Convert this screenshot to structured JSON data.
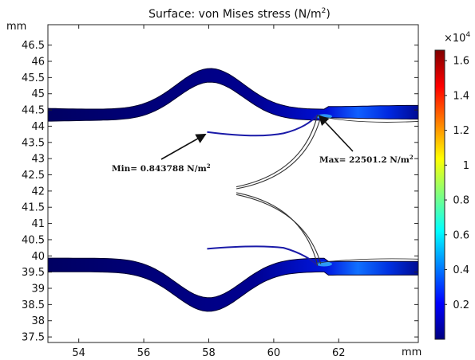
{
  "chart_data": {
    "type": "heatmap",
    "title_main": "Surface: von Mises stress (N/m",
    "title_sup": "2",
    "title_end": ")",
    "x_unit": "mm",
    "y_unit": "mm",
    "xlim": [
      53.05,
      64.45
    ],
    "ylim": [
      37.33,
      47.13
    ],
    "x_ticks": [
      "54",
      "56",
      "58",
      "60",
      "62"
    ],
    "y_ticks": [
      "37.5",
      "38",
      "38.5",
      "39",
      "39.5",
      "40",
      "40.5",
      "41",
      "41.5",
      "42",
      "42.5",
      "43",
      "43.5",
      "44",
      "44.5",
      "45",
      "45.5",
      "46",
      "46.5"
    ],
    "colorbar": {
      "multiplier_base": "×10",
      "multiplier_exp": "4",
      "range": [
        0,
        1.66
      ],
      "ticks": [
        "0.2",
        "0.4",
        "0.6",
        "0.8",
        "1",
        "1.2",
        "1.4",
        "1.6"
      ],
      "colormap": [
        "#00007f",
        "#0000ff",
        "#007fff",
        "#00ffff",
        "#7fff7f",
        "#ffff00",
        "#ff7f00",
        "#ff0000",
        "#7f0000"
      ]
    },
    "annotations": {
      "min": {
        "text": "Min= 0.843788 N/m",
        "sup": "2",
        "x": 57.95,
        "y": 43.8
      },
      "max": {
        "text": "Max= 22501.2 N/m",
        "sup": "2",
        "x": 61.35,
        "y": 44.35
      }
    }
  }
}
